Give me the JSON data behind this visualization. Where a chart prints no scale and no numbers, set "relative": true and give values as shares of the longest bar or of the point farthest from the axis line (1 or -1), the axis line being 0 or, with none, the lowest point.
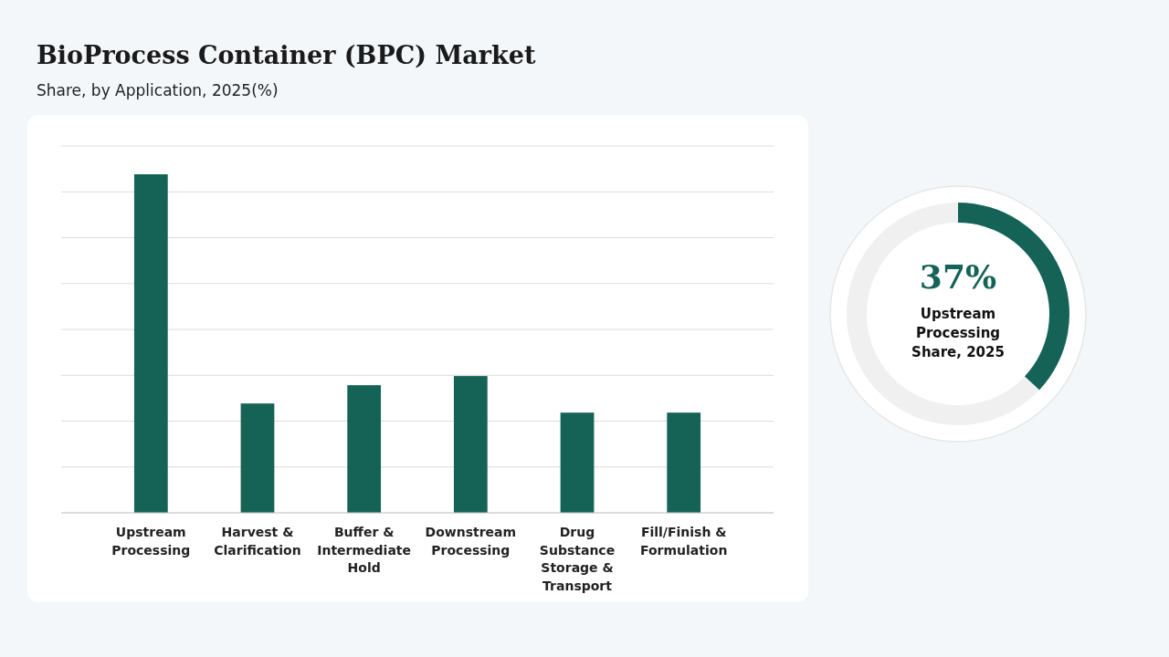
{
  "chart_data": [
    {
      "type": "bar",
      "title": "BioProcess Container (BPC) Market",
      "subtitle": "Share, by Application, 2025(%)",
      "categories": [
        "Upstream Processing",
        "Harvest & Clarification",
        "Buffer & Intermediate Hold",
        "Downstream Processing",
        "Drug Substance Storage & Transport",
        "Fill/Finish & Formulation"
      ],
      "values": [
        1,
        0.323,
        0.377,
        0.404,
        0.296,
        0.296
      ],
      "color": "#156356",
      "relative": true,
      "grid": true
    },
    {
      "type": "donut",
      "categories": [
        null,
        null
      ],
      "values": [
        37,
        63
      ],
      "colors": [
        "#156356",
        "#f0f0f0"
      ],
      "value_labels": [
        "37%",
        null
      ],
      "annotations": [
        "Upstream Processing Share, 2025"
      ]
    }
  ]
}
